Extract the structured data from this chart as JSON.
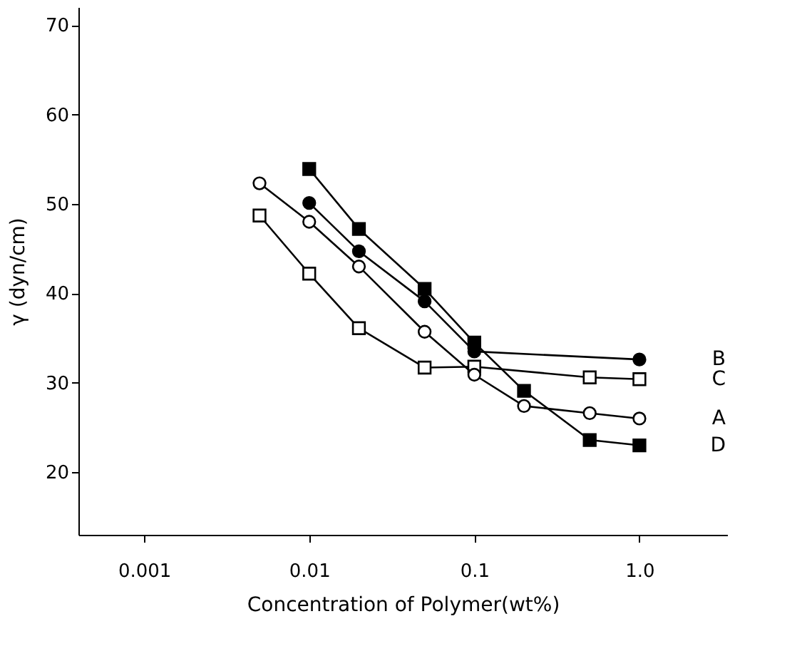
{
  "chart_data": {
    "type": "line",
    "xlabel": "Concentration of Polymer(wt%)",
    "ylabel": "γ (dyn/cm)",
    "log": "x",
    "xlim": [
      0.0004,
      3.4
    ],
    "xticks": [
      0.001,
      0.01,
      0.1,
      {
        "value": 1,
        "label": "1.0"
      }
    ],
    "ylim": [
      13,
      72
    ],
    "yticks": [
      20,
      30,
      40,
      50,
      60,
      70
    ],
    "grid": false,
    "legend": false,
    "line_style": "solid",
    "series": [
      {
        "name": "B",
        "color": "#000000",
        "marker": "circle",
        "colors": [
          "#000000",
          "#000000",
          "#000000",
          "#000000",
          "#000000"
        ],
        "x": [
          0.01,
          0.02,
          0.05,
          0.1,
          1.0
        ],
        "values": [
          50.1,
          44.7,
          39.1,
          33.5,
          32.6
        ]
      },
      {
        "name": "C",
        "color": "#000000",
        "marker": "square",
        "colors": [
          "#ffffff",
          "#ffffff",
          "#ffffff",
          "#ffffff",
          "#ffffff",
          "#ffffff",
          "#ffffff"
        ],
        "x": [
          0.005,
          0.01,
          0.02,
          0.05,
          0.1,
          0.5,
          1.0
        ],
        "values": [
          48.7,
          42.2,
          36.1,
          31.7,
          31.8,
          30.6,
          30.4
        ]
      },
      {
        "name": "A",
        "color": "#000000",
        "marker": "circle",
        "colors": [
          "#ffffff",
          "#ffffff",
          "#ffffff",
          "#ffffff",
          "#ffffff",
          "#ffffff",
          "#ffffff",
          "#ffffff"
        ],
        "x": [
          0.005,
          0.01,
          0.02,
          0.05,
          0.1,
          0.2,
          0.5,
          1.0
        ],
        "values": [
          52.3,
          48.0,
          43.0,
          35.7,
          30.9,
          27.4,
          26.6,
          26.0
        ]
      },
      {
        "name": "D",
        "color": "#000000",
        "marker": "square",
        "colors": [
          "#000000",
          "#000000",
          "#000000",
          "#000000",
          "#000000",
          "#000000",
          "#000000"
        ],
        "x": [
          0.01,
          0.02,
          0.05,
          0.1,
          0.2,
          0.5,
          1.0
        ],
        "values": [
          53.9,
          47.2,
          40.5,
          34.5,
          29.1,
          23.6,
          23.0
        ]
      }
    ]
  }
}
